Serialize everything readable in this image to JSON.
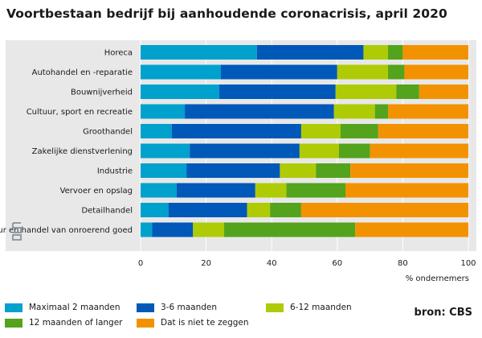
{
  "chart_data": {
    "type": "bar",
    "orientation": "horizontal",
    "stacked": true,
    "title": "Voortbestaan bedrijf bij aanhoudende coronacrisis, april 2020",
    "xlabel": "% ondernemers",
    "ylabel": "",
    "xlim": [
      0,
      100
    ],
    "xticks": [
      0,
      20,
      40,
      60,
      80,
      100
    ],
    "grid": "vertical",
    "legend_position": "bottom",
    "categories": [
      "Horeca",
      "Autohandel en -reparatie",
      "Bouwnijverheid",
      "Cultuur, sport en recreatie",
      "Groothandel",
      "Zakelijke dienstverlening",
      "Industrie",
      "Vervoer en opslag",
      "Detailhandel",
      "Verhuur en handel van onroerend goed"
    ],
    "series": [
      {
        "name": "Maximaal 2 maanden",
        "color": "#00a1cd",
        "values": [
          35.5,
          24.5,
          24.0,
          13.5,
          9.5,
          15.0,
          14.0,
          11.0,
          8.5,
          3.5
        ]
      },
      {
        "name": "3-6 maanden",
        "color": "#0058b8",
        "values": [
          32.5,
          35.5,
          35.5,
          45.5,
          39.5,
          33.5,
          28.5,
          24.0,
          24.0,
          12.5
        ]
      },
      {
        "name": "6-12 maanden",
        "color": "#afcb05",
        "values": [
          7.5,
          15.5,
          18.5,
          12.5,
          12.0,
          12.0,
          11.0,
          9.5,
          7.0,
          9.5
        ]
      },
      {
        "name": "12 maanden of langer",
        "color": "#53a31d",
        "values": [
          4.5,
          5.0,
          7.0,
          4.0,
          11.5,
          9.5,
          10.5,
          18.0,
          9.5,
          40.0
        ]
      },
      {
        "name": "Dat is niet te zeggen",
        "color": "#f39200",
        "values": [
          20.0,
          19.5,
          15.0,
          24.5,
          27.5,
          30.0,
          36.0,
          37.5,
          51.0,
          34.5
        ]
      }
    ]
  },
  "source": "bron: CBS",
  "logo_icon": "cbs-logo-icon"
}
